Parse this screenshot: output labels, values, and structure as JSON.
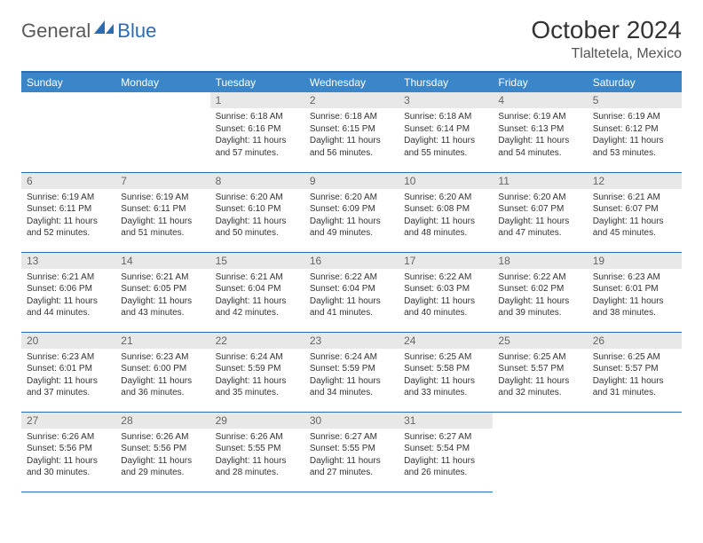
{
  "logo": {
    "text1": "General",
    "text2": "Blue"
  },
  "header": {
    "title": "October 2024",
    "location": "Tlaltetela, Mexico"
  },
  "colors": {
    "header_bg": "#3b86c8",
    "header_border": "#2a6db4",
    "daynum_bg": "#e8e8e8",
    "text": "#333333",
    "logo_gray": "#5a5a5a",
    "logo_blue": "#2a6db4"
  },
  "weekdays": [
    "Sunday",
    "Monday",
    "Tuesday",
    "Wednesday",
    "Thursday",
    "Friday",
    "Saturday"
  ],
  "layout": {
    "first_weekday_index": 2,
    "days_in_month": 31
  },
  "days": [
    {
      "n": 1,
      "sunrise": "6:18 AM",
      "sunset": "6:16 PM",
      "daylight": "11 hours and 57 minutes."
    },
    {
      "n": 2,
      "sunrise": "6:18 AM",
      "sunset": "6:15 PM",
      "daylight": "11 hours and 56 minutes."
    },
    {
      "n": 3,
      "sunrise": "6:18 AM",
      "sunset": "6:14 PM",
      "daylight": "11 hours and 55 minutes."
    },
    {
      "n": 4,
      "sunrise": "6:19 AM",
      "sunset": "6:13 PM",
      "daylight": "11 hours and 54 minutes."
    },
    {
      "n": 5,
      "sunrise": "6:19 AM",
      "sunset": "6:12 PM",
      "daylight": "11 hours and 53 minutes."
    },
    {
      "n": 6,
      "sunrise": "6:19 AM",
      "sunset": "6:11 PM",
      "daylight": "11 hours and 52 minutes."
    },
    {
      "n": 7,
      "sunrise": "6:19 AM",
      "sunset": "6:11 PM",
      "daylight": "11 hours and 51 minutes."
    },
    {
      "n": 8,
      "sunrise": "6:20 AM",
      "sunset": "6:10 PM",
      "daylight": "11 hours and 50 minutes."
    },
    {
      "n": 9,
      "sunrise": "6:20 AM",
      "sunset": "6:09 PM",
      "daylight": "11 hours and 49 minutes."
    },
    {
      "n": 10,
      "sunrise": "6:20 AM",
      "sunset": "6:08 PM",
      "daylight": "11 hours and 48 minutes."
    },
    {
      "n": 11,
      "sunrise": "6:20 AM",
      "sunset": "6:07 PM",
      "daylight": "11 hours and 47 minutes."
    },
    {
      "n": 12,
      "sunrise": "6:21 AM",
      "sunset": "6:07 PM",
      "daylight": "11 hours and 45 minutes."
    },
    {
      "n": 13,
      "sunrise": "6:21 AM",
      "sunset": "6:06 PM",
      "daylight": "11 hours and 44 minutes."
    },
    {
      "n": 14,
      "sunrise": "6:21 AM",
      "sunset": "6:05 PM",
      "daylight": "11 hours and 43 minutes."
    },
    {
      "n": 15,
      "sunrise": "6:21 AM",
      "sunset": "6:04 PM",
      "daylight": "11 hours and 42 minutes."
    },
    {
      "n": 16,
      "sunrise": "6:22 AM",
      "sunset": "6:04 PM",
      "daylight": "11 hours and 41 minutes."
    },
    {
      "n": 17,
      "sunrise": "6:22 AM",
      "sunset": "6:03 PM",
      "daylight": "11 hours and 40 minutes."
    },
    {
      "n": 18,
      "sunrise": "6:22 AM",
      "sunset": "6:02 PM",
      "daylight": "11 hours and 39 minutes."
    },
    {
      "n": 19,
      "sunrise": "6:23 AM",
      "sunset": "6:01 PM",
      "daylight": "11 hours and 38 minutes."
    },
    {
      "n": 20,
      "sunrise": "6:23 AM",
      "sunset": "6:01 PM",
      "daylight": "11 hours and 37 minutes."
    },
    {
      "n": 21,
      "sunrise": "6:23 AM",
      "sunset": "6:00 PM",
      "daylight": "11 hours and 36 minutes."
    },
    {
      "n": 22,
      "sunrise": "6:24 AM",
      "sunset": "5:59 PM",
      "daylight": "11 hours and 35 minutes."
    },
    {
      "n": 23,
      "sunrise": "6:24 AM",
      "sunset": "5:59 PM",
      "daylight": "11 hours and 34 minutes."
    },
    {
      "n": 24,
      "sunrise": "6:25 AM",
      "sunset": "5:58 PM",
      "daylight": "11 hours and 33 minutes."
    },
    {
      "n": 25,
      "sunrise": "6:25 AM",
      "sunset": "5:57 PM",
      "daylight": "11 hours and 32 minutes."
    },
    {
      "n": 26,
      "sunrise": "6:25 AM",
      "sunset": "5:57 PM",
      "daylight": "11 hours and 31 minutes."
    },
    {
      "n": 27,
      "sunrise": "6:26 AM",
      "sunset": "5:56 PM",
      "daylight": "11 hours and 30 minutes."
    },
    {
      "n": 28,
      "sunrise": "6:26 AM",
      "sunset": "5:56 PM",
      "daylight": "11 hours and 29 minutes."
    },
    {
      "n": 29,
      "sunrise": "6:26 AM",
      "sunset": "5:55 PM",
      "daylight": "11 hours and 28 minutes."
    },
    {
      "n": 30,
      "sunrise": "6:27 AM",
      "sunset": "5:55 PM",
      "daylight": "11 hours and 27 minutes."
    },
    {
      "n": 31,
      "sunrise": "6:27 AM",
      "sunset": "5:54 PM",
      "daylight": "11 hours and 26 minutes."
    }
  ]
}
